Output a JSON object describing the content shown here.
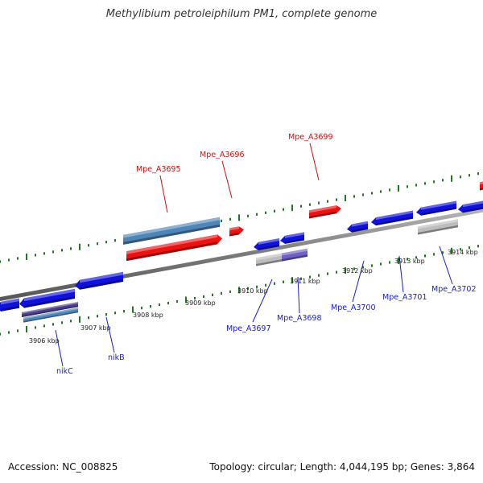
{
  "title": "Methylibium petroleiphilum PM1, complete genome",
  "footer": {
    "accession": "Accession: NC_008825",
    "summary": "Topology: circular; Length: 4,044,195 bp; Genes: 3,864"
  },
  "colors": {
    "forward_gene": "#ee1111",
    "reverse_gene": "#1111dd",
    "reverse_label": "#1a1acc",
    "forward_label": "#cc1111",
    "steelblue_feature": "#4f86b8",
    "gray_feature": "#bdbdbd",
    "purple_feature": "#7060c8",
    "dark_purple_feature": "#4a3d8a",
    "backbone": "#888888",
    "tick": "#1e7a1e"
  },
  "kbp_labels": [
    "3906 kbp",
    "3907 kbp",
    "3908 kbp",
    "3909 kbp",
    "3910 kbp",
    "3911 kbp",
    "3912 kbp",
    "3913 kbp",
    "3914 kbp"
  ],
  "forward_labels": [
    "Mpe_A3695",
    "Mpe_A3696",
    "Mpe_A3699"
  ],
  "reverse_labels": [
    "nikC",
    "nikB",
    "Mpe_A3697",
    "Mpe_A3698",
    "Mpe_A3700",
    "Mpe_A3701",
    "Mpe_A3702"
  ]
}
